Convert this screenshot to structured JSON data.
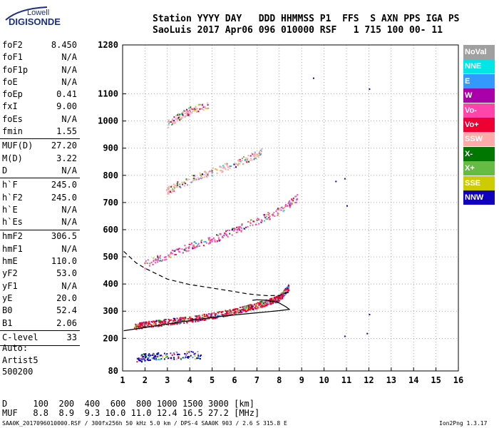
{
  "logo": {
    "line1": "Lowell",
    "line2": "DIGISONDE"
  },
  "header": {
    "line1": "Station YYYY DAY   DDD HHMMSS P1  FFS  S AXN PPS IGA PS",
    "line2": "SaoLuis 2017 Apr06 096 010000 RSF   1 715 100 00- 11"
  },
  "params": {
    "group1": [
      {
        "name": "foF2",
        "value": "8.450"
      },
      {
        "name": "foF1",
        "value": "N/A"
      },
      {
        "name": "foF1p",
        "value": "N/A"
      },
      {
        "name": "foE",
        "value": "N/A"
      },
      {
        "name": "foEp",
        "value": "0.41"
      },
      {
        "name": "fxI",
        "value": "9.00"
      },
      {
        "name": "foEs",
        "value": "N/A"
      },
      {
        "name": "fmin",
        "value": "1.55"
      }
    ],
    "group2": [
      {
        "name": "MUF(D)",
        "value": "27.20"
      },
      {
        "name": "M(D)",
        "value": "3.22"
      },
      {
        "name": "D",
        "value": "N/A"
      }
    ],
    "group3": [
      {
        "name": "h`F",
        "value": "245.0"
      },
      {
        "name": "h`F2",
        "value": "245.0"
      },
      {
        "name": "h`E",
        "value": "N/A"
      },
      {
        "name": "h`Es",
        "value": "N/A"
      }
    ],
    "group4": [
      {
        "name": "hmF2",
        "value": "306.5"
      },
      {
        "name": "hmF1",
        "value": "N/A"
      },
      {
        "name": "hmE",
        "value": "110.0"
      },
      {
        "name": "yF2",
        "value": "53.0"
      },
      {
        "name": "yF1",
        "value": "N/A"
      },
      {
        "name": "yE",
        "value": "20.0"
      },
      {
        "name": "B0",
        "value": "52.4"
      },
      {
        "name": "B1",
        "value": "2.06"
      }
    ],
    "group5": [
      {
        "name": "C-level",
        "value": "33"
      }
    ]
  },
  "auto": {
    "line1": "Auto:",
    "line2": "Artist5",
    "line3": "500200"
  },
  "legend": [
    {
      "label": "NoVal",
      "color": "#a0a0a0"
    },
    {
      "label": "NNE",
      "color": "#00e5e5"
    },
    {
      "label": "E",
      "color": "#3399ff"
    },
    {
      "label": "W",
      "color": "#aa00aa"
    },
    {
      "label": "Vo-",
      "color": "#ff44aa"
    },
    {
      "label": "Vo+",
      "color": "#ee0033"
    },
    {
      "label": "SSW",
      "color": "#ffaaaa"
    },
    {
      "label": "X-",
      "color": "#007700"
    },
    {
      "label": "X+",
      "color": "#66bb44"
    },
    {
      "label": "SSE",
      "color": "#cccc00"
    },
    {
      "label": "NNW",
      "color": "#1100bb"
    }
  ],
  "bottom": {
    "d_row": "D     100  200  400  600  800 1000 1500 3000 [km]",
    "mhz_row": "MUF   8.8  8.9  9.3 10.0 11.0 12.4 16.5 27.2 [MHz]",
    "footer": "SAA0K_2017096010000.RSF / 300fx256h 50 kHz 5.0 km / DPS-4 SAA0K 903 / 2.6 S 315.8 E",
    "footer_right": "Ion2Png 1.3.17"
  },
  "chart_data": {
    "type": "scatter",
    "xlim": [
      1,
      16
    ],
    "ylim": [
      80,
      1280
    ],
    "x_ticks": [
      1,
      2,
      3,
      4,
      5,
      6,
      7,
      8,
      9,
      10,
      11,
      12,
      13,
      14,
      15,
      16
    ],
    "y_ticks": [
      80,
      200,
      300,
      400,
      500,
      600,
      700,
      800,
      900,
      1000,
      1100,
      1280
    ],
    "x_tick_labels": [
      "1",
      "2",
      "3",
      "4",
      "5",
      "6",
      "7",
      "8",
      "9",
      "10",
      "11",
      "12",
      "13",
      "14",
      "15",
      "16"
    ],
    "y_tick_labels": [
      "80",
      "200",
      "300",
      "400",
      "500",
      "600",
      "700",
      "800",
      "900",
      "1000",
      "1100",
      "1280"
    ],
    "grid": true,
    "traces": [
      {
        "name": "F-trace",
        "color": "#ee0033",
        "points": [
          [
            1.5,
            245
          ],
          [
            2.0,
            252
          ],
          [
            3.0,
            262
          ],
          [
            4.0,
            272
          ],
          [
            5.0,
            285
          ],
          [
            6.0,
            302
          ],
          [
            6.8,
            318
          ],
          [
            7.5,
            335
          ],
          [
            8.0,
            350
          ],
          [
            8.4,
            390
          ]
        ]
      },
      {
        "name": "2nd-hop",
        "color": "#ff44aa",
        "points": [
          [
            1.9,
            470
          ],
          [
            3.0,
            510
          ],
          [
            4.0,
            540
          ],
          [
            5.0,
            565
          ],
          [
            6.0,
            600
          ],
          [
            7.0,
            635
          ],
          [
            8.0,
            670
          ],
          [
            8.8,
            720
          ]
        ]
      },
      {
        "name": "3rd-hop",
        "color": "#ffaaaa",
        "points": [
          [
            2.9,
            740
          ],
          [
            3.5,
            770
          ],
          [
            4.5,
            800
          ],
          [
            5.5,
            830
          ],
          [
            6.5,
            860
          ],
          [
            7.2,
            890
          ]
        ]
      },
      {
        "name": "4th-hop",
        "color": "#ffaaaa",
        "points": [
          [
            3.0,
            990
          ],
          [
            3.5,
            1020
          ],
          [
            4.0,
            1040
          ],
          [
            4.8,
            1060
          ]
        ]
      },
      {
        "name": "Es-trace",
        "color": "#1100bb",
        "points": [
          [
            1.6,
            120
          ],
          [
            2.0,
            135
          ],
          [
            2.5,
            135
          ],
          [
            3.5,
            140
          ],
          [
            4.5,
            140
          ]
        ]
      },
      {
        "name": "scattered",
        "color": "#1100bb",
        "points": [
          [
            10.5,
            780
          ],
          [
            10.9,
            790
          ],
          [
            11.0,
            690
          ],
          [
            12.0,
            1120
          ],
          [
            12.0,
            290
          ],
          [
            10.9,
            210
          ],
          [
            11.9,
            220
          ],
          [
            9.5,
            1160
          ]
        ]
      }
    ],
    "profile_lines": [
      {
        "name": "F-profile",
        "style": "solid",
        "points": [
          [
            1.05,
            228
          ],
          [
            2,
            240
          ],
          [
            3,
            253
          ],
          [
            4,
            265
          ],
          [
            5,
            277
          ],
          [
            6,
            286
          ],
          [
            7,
            294
          ],
          [
            8,
            302
          ],
          [
            8.45,
            306.5
          ],
          [
            8.3,
            316
          ],
          [
            8.0,
            330
          ],
          [
            7.5,
            340
          ],
          [
            7.0,
            342
          ],
          [
            6.8,
            340
          ]
        ]
      },
      {
        "name": "E-profile",
        "style": "dashed",
        "points": [
          [
            1.05,
            520
          ],
          [
            1.6,
            478
          ],
          [
            2,
            458
          ],
          [
            2.5,
            438
          ],
          [
            3,
            418
          ],
          [
            4,
            398
          ],
          [
            5,
            385
          ],
          [
            6,
            372
          ],
          [
            6.5,
            365
          ],
          [
            7,
            360
          ],
          [
            7.5,
            357
          ],
          [
            8,
            358
          ],
          [
            8.45,
            370
          ]
        ]
      }
    ]
  }
}
